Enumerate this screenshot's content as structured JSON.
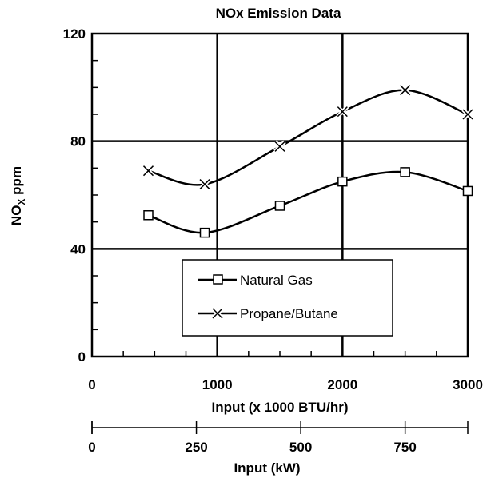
{
  "chart_data": {
    "type": "line",
    "title": "NOx Emission Data",
    "xlabel": "Input (x 1000 BTU/hr)",
    "ylabel_main": "NO",
    "ylabel_sub": "X",
    "ylabel_unit": " ppm",
    "xlim": [
      0,
      3000
    ],
    "ylim": [
      0,
      120
    ],
    "x_ticks": [
      0,
      1000,
      2000,
      3000
    ],
    "x_tick_labels": [
      "0",
      "1000",
      "2000",
      "3000"
    ],
    "y_ticks": [
      0,
      40,
      80,
      120
    ],
    "y_tick_labels": [
      "0",
      "40",
      "80",
      "120"
    ],
    "grid": true,
    "legend_position": "lower-center",
    "series": [
      {
        "name": "Natural Gas",
        "marker": "square",
        "x": [
          450,
          900,
          1500,
          2000,
          2500,
          3000
        ],
        "values": [
          52.5,
          46,
          56,
          65,
          68.5,
          61.5
        ]
      },
      {
        "name": "Propane/Butane",
        "marker": "x",
        "x": [
          450,
          900,
          1500,
          2000,
          2500,
          3000
        ],
        "values": [
          69,
          64,
          78,
          91,
          99,
          90
        ]
      }
    ],
    "secondary_x_axis": {
      "xlabel": "Input (kW)",
      "xlim": [
        0,
        900
      ],
      "tick_values": [
        0,
        250,
        500,
        750
      ],
      "tick_labels": [
        "0",
        "250",
        "500",
        "750"
      ]
    }
  }
}
